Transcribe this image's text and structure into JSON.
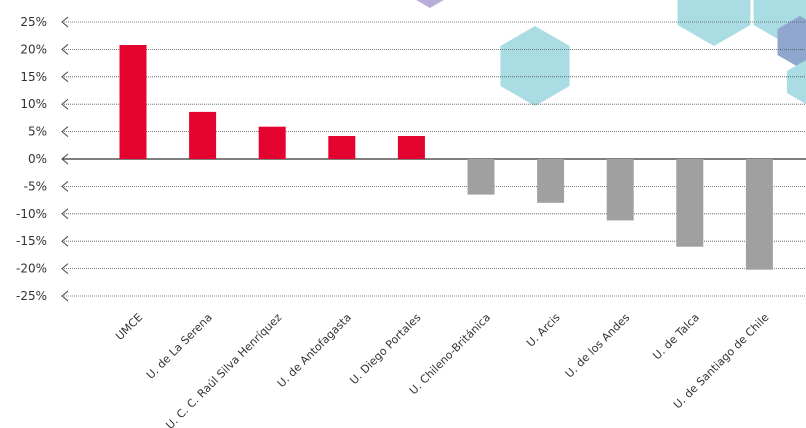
{
  "chart_data": {
    "type": "bar",
    "categories": [
      "UMCE",
      "U. de La Serena",
      "U. C. C. Raúl Silva Henríquez",
      "U. de Antofagasta",
      "U. Diego Portales",
      "U. Chileno-Británica",
      "U. Arcis",
      "U. de los Andes",
      "U. de Talca",
      "U. de Santiago de Chile"
    ],
    "values": [
      20.8,
      8.6,
      5.9,
      4.2,
      4.2,
      -6.5,
      -8.0,
      -11.2,
      -16.0,
      -20.2
    ],
    "ylim": [
      -25,
      25
    ],
    "yticks": [
      25,
      20,
      15,
      10,
      5,
      0,
      -5,
      -10,
      -15,
      -20,
      -25
    ],
    "ytick_labels": [
      "25%",
      "20%",
      "15%",
      "10%",
      "5%",
      "0%",
      "-5%",
      "-10%",
      "-15%",
      "-20%",
      "-25%"
    ],
    "grid": true,
    "colors": {
      "positive": "#e4032e",
      "negative": "#a0a0a0",
      "zero_line": "#333333",
      "grid": "#555555"
    },
    "title": "",
    "xlabel": "",
    "ylabel": ""
  },
  "decoration": {
    "hex_colors": [
      "#a9dce3",
      "#8fa6cf",
      "#b9aed8"
    ]
  }
}
